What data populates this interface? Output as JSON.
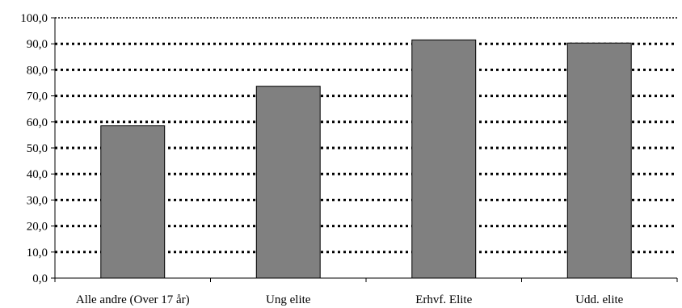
{
  "chart_data": {
    "type": "bar",
    "categories": [
      "Alle andre (Over 17 år)",
      "Ung elite",
      "Erhvf. Elite",
      "Udd. elite"
    ],
    "values": [
      58.5,
      73.7,
      91.5,
      90.3
    ],
    "yticks": [
      "0,0",
      "10,0",
      "20,0",
      "30,0",
      "40,0",
      "50,0",
      "60,0",
      "70,0",
      "80,0",
      "90,0",
      "100,0"
    ],
    "ylim": [
      0,
      100
    ],
    "grid": true,
    "grid_style": "dotted",
    "bar_color": "#808080",
    "bar_edge_color": "#000000",
    "title": "",
    "xlabel": "",
    "ylabel": ""
  }
}
